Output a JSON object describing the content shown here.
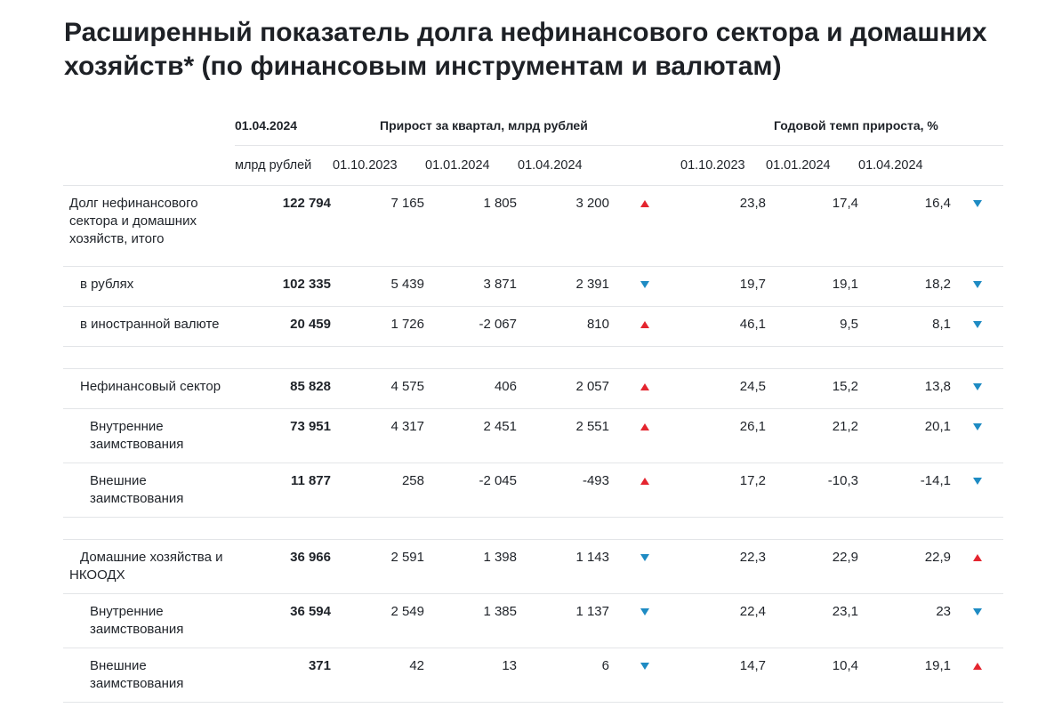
{
  "title": "Расширенный показатель долга нефинансового сектора и домашних хозяйств* (по финансовым инструментам и валютам)",
  "colors": {
    "up": "#e4252f",
    "down": "#1e8bc3"
  },
  "header": {
    "date_col": "01.04.2024",
    "group_growth": "Прирост за квартал, млрд рублей",
    "group_rate": "Годовой темп прироста, %",
    "unit": "млрд рублей",
    "growth_dates": [
      "01.10.2023",
      "01.01.2024",
      "01.04.2024"
    ],
    "rate_dates": [
      "01.10.2023",
      "01.01.2024",
      "01.04.2024"
    ]
  },
  "rows": [
    {
      "label": "Долг нефинансового сектора и домашних хозяйств, итого",
      "value": "122 794",
      "growth": [
        "7 165",
        "1 805",
        "3 200"
      ],
      "growth_trend": "up",
      "rate": [
        "23,8",
        "17,4",
        "16,4"
      ],
      "rate_trend": "down"
    },
    {
      "label": "в рублях",
      "value": "102 335",
      "growth": [
        "5 439",
        "3 871",
        "2 391"
      ],
      "growth_trend": "down",
      "rate": [
        "19,7",
        "19,1",
        "18,2"
      ],
      "rate_trend": "down"
    },
    {
      "label": "в иностранной валюте",
      "value": "20 459",
      "growth": [
        "1 726",
        "-2 067",
        "810"
      ],
      "growth_trend": "up",
      "rate": [
        "46,1",
        "9,5",
        "8,1"
      ],
      "rate_trend": "down"
    },
    {
      "label": "Нефинансовый сектор",
      "value": "85 828",
      "growth": [
        "4 575",
        "406",
        "2 057"
      ],
      "growth_trend": "up",
      "rate": [
        "24,5",
        "15,2",
        "13,8"
      ],
      "rate_trend": "down"
    },
    {
      "label": "Внутренние заимствования",
      "value": "73 951",
      "growth": [
        "4 317",
        "2 451",
        "2 551"
      ],
      "growth_trend": "up",
      "rate": [
        "26,1",
        "21,2",
        "20,1"
      ],
      "rate_trend": "down"
    },
    {
      "label": "Внешние заимствования",
      "value": "11 877",
      "growth": [
        "258",
        "-2 045",
        "-493"
      ],
      "growth_trend": "up",
      "rate": [
        "17,2",
        "-10,3",
        "-14,1"
      ],
      "rate_trend": "down"
    },
    {
      "label": "Домашние хозяйства и НКООДХ",
      "value": "36 966",
      "growth": [
        "2 591",
        "1 398",
        "1 143"
      ],
      "growth_trend": "down",
      "rate": [
        "22,3",
        "22,9",
        "22,9"
      ],
      "rate_trend": "up"
    },
    {
      "label": "Внутренние заимствования",
      "value": "36 594",
      "growth": [
        "2 549",
        "1 385",
        "1 137"
      ],
      "growth_trend": "down",
      "rate": [
        "22,4",
        "23,1",
        "23"
      ],
      "rate_trend": "down"
    },
    {
      "label": "Внешние заимствования",
      "value": "371",
      "growth": [
        "42",
        "13",
        "6"
      ],
      "growth_trend": "down",
      "rate": [
        "14,7",
        "10,4",
        "19,1"
      ],
      "rate_trend": "up"
    }
  ]
}
